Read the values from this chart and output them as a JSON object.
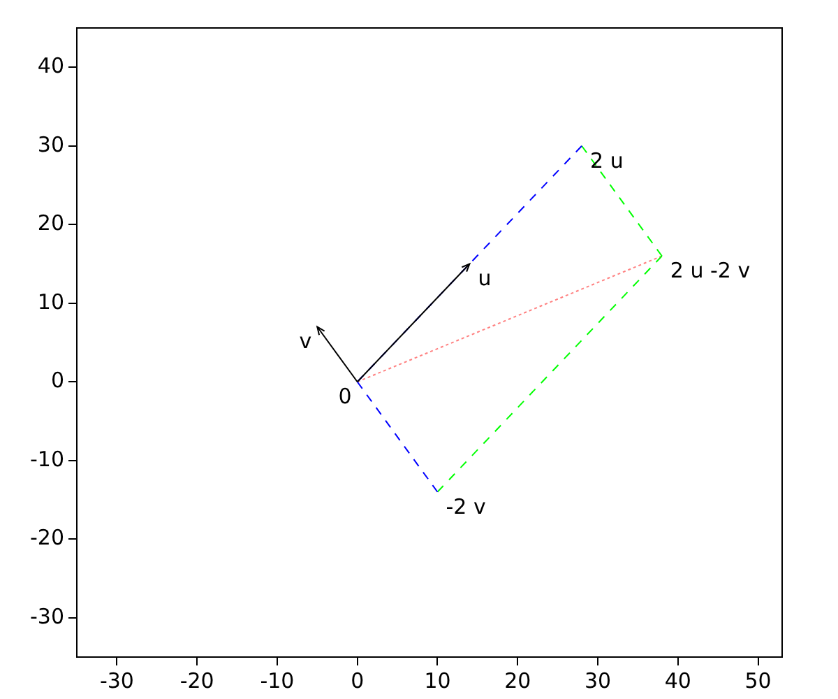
{
  "chart_data": {
    "type": "line",
    "xlim": [
      -35,
      53
    ],
    "ylim": [
      -35,
      45
    ],
    "xticks": [
      -30,
      -20,
      -10,
      0,
      10,
      20,
      30,
      40,
      50
    ],
    "yticks": [
      -30,
      -20,
      -10,
      0,
      10,
      20,
      30,
      40
    ],
    "grid": false,
    "legend": false,
    "marker": "none",
    "series": [
      {
        "x": [
          0,
          14
        ],
        "values": [
          0,
          15
        ],
        "color": "#000000",
        "line_style": "solid"
      },
      {
        "x": [
          0,
          -5
        ],
        "values": [
          0,
          7
        ],
        "color": "#000000",
        "line_style": "solid"
      },
      {
        "x": [
          10,
          0,
          28
        ],
        "values": [
          -14,
          0,
          30
        ],
        "color": "#0000ff",
        "line_style": "dashed"
      },
      {
        "x": [
          28,
          38,
          10
        ],
        "values": [
          30,
          16,
          -14
        ],
        "color": "#00ff00",
        "line_style": "dashed"
      },
      {
        "x": [
          0,
          38
        ],
        "values": [
          0,
          16
        ],
        "color": "#ff8080",
        "line_style": "dotted"
      }
    ],
    "annotations": [
      {
        "text": "u",
        "x": 14,
        "y": 15
      },
      {
        "text": "v",
        "x": -5,
        "y": 7
      },
      {
        "text": "0",
        "x": 0,
        "y": 0
      },
      {
        "text": "2 u",
        "x": 28,
        "y": 30
      },
      {
        "text": "-2 v",
        "x": 10,
        "y": -14
      },
      {
        "text": "2 u -2 v",
        "x": 38,
        "y": 16
      }
    ]
  }
}
